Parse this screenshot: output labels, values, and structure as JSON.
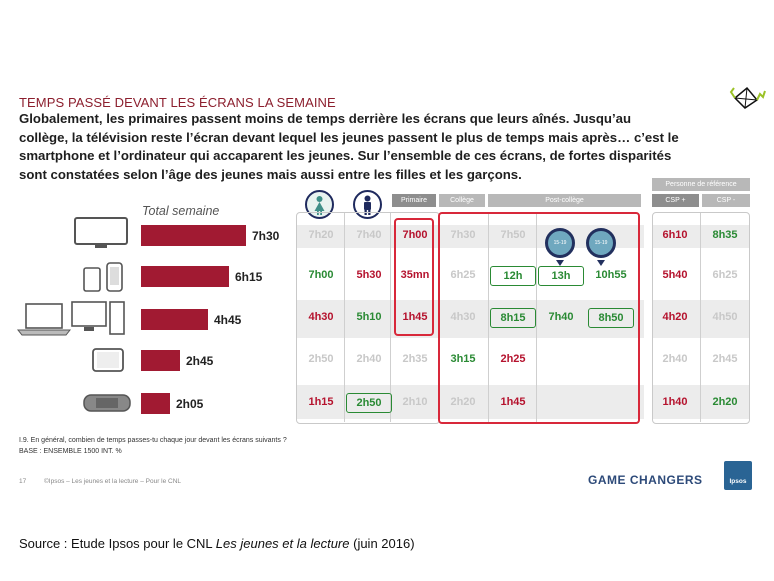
{
  "slide": {
    "title": "TEMPS PASSÉ DEVANT LES ÉCRANS LA SEMAINE",
    "text_lines": [
      "Globalement, les primaires passent moins de temps derrière les écrans que leurs aînés. Jusqu’au",
      "collège, la télévision reste l’écran devant lequel les jeunes passent le plus de temps mais après… c’est le",
      "smartphone et l’ordinateur qui accaparent les jeunes. Sur l’ensemble de ces écrans, de fortes disparités",
      "sont constatées selon l’âge des jeunes mais aussi entre les filles et les garçons."
    ]
  },
  "chart_data": {
    "type": "bar",
    "title": "Total semaine",
    "categories": [
      "tv-icon",
      "smartphone-icon",
      "computer-icon",
      "tablet-icon",
      "game-console-icon"
    ],
    "values": [
      7.5,
      6.25,
      4.75,
      2.75,
      2.0833
    ],
    "value_labels": [
      "7h30",
      "6h15",
      "4h45",
      "2h45",
      "2h05"
    ],
    "orientation": "horizontal",
    "bar_color": "#a11a32",
    "xlim": [
      0,
      7.5
    ]
  },
  "table": {
    "headers": {
      "primaire": "Primaire",
      "college": "Collège",
      "post_college": "Post-collège",
      "reference": "Personne de référence",
      "csp_plus": "CSP +",
      "csp_minus": "CSP -"
    },
    "age_badges": [
      "15-19",
      "15-19"
    ],
    "rows": [
      [
        {
          "v": "7h20",
          "c": "grey"
        },
        {
          "v": "7h40",
          "c": "grey"
        },
        {
          "v": "7h00",
          "c": "red"
        },
        {
          "v": "7h30",
          "c": "grey"
        },
        {
          "v": "7h50",
          "c": "grey"
        },
        {
          "v": "",
          "c": "grey"
        },
        {
          "v": "",
          "c": "grey"
        },
        {
          "v": "6h10",
          "c": "red"
        },
        {
          "v": "8h35",
          "c": "green"
        }
      ],
      [
        {
          "v": "7h00",
          "c": "green"
        },
        {
          "v": "5h30",
          "c": "red"
        },
        {
          "v": "35mn",
          "c": "red"
        },
        {
          "v": "6h25",
          "c": "grey"
        },
        {
          "v": "12h",
          "c": "green",
          "boxed": true
        },
        {
          "v": "13h",
          "c": "green",
          "boxed": true
        },
        {
          "v": "10h55",
          "c": "green"
        },
        {
          "v": "5h40",
          "c": "red"
        },
        {
          "v": "6h25",
          "c": "grey"
        }
      ],
      [
        {
          "v": "4h30",
          "c": "red"
        },
        {
          "v": "5h10",
          "c": "green"
        },
        {
          "v": "1h45",
          "c": "red"
        },
        {
          "v": "4h30",
          "c": "grey"
        },
        {
          "v": "8h15",
          "c": "green",
          "boxed": true
        },
        {
          "v": "7h40",
          "c": "green"
        },
        {
          "v": "8h50",
          "c": "green",
          "boxed": true
        },
        {
          "v": "4h20",
          "c": "red"
        },
        {
          "v": "4h50",
          "c": "grey"
        }
      ],
      [
        {
          "v": "2h50",
          "c": "grey"
        },
        {
          "v": "2h40",
          "c": "grey"
        },
        {
          "v": "2h35",
          "c": "grey"
        },
        {
          "v": "3h15",
          "c": "green"
        },
        {
          "v": "2h25",
          "c": "red"
        },
        {
          "v": "",
          "c": "grey"
        },
        {
          "v": "",
          "c": "grey"
        },
        {
          "v": "2h40",
          "c": "grey"
        },
        {
          "v": "2h45",
          "c": "grey"
        }
      ],
      [
        {
          "v": "1h15",
          "c": "red"
        },
        {
          "v": "2h50",
          "c": "green",
          "boxed": true
        },
        {
          "v": "2h10",
          "c": "grey"
        },
        {
          "v": "2h20",
          "c": "grey"
        },
        {
          "v": "1h45",
          "c": "red"
        },
        {
          "v": "",
          "c": "grey"
        },
        {
          "v": "",
          "c": "grey"
        },
        {
          "v": "1h40",
          "c": "red"
        },
        {
          "v": "2h20",
          "c": "green"
        }
      ]
    ]
  },
  "footnotes": {
    "question": "I.9. En général, combien de temps passes-tu chaque jour devant les écrans suivants ?",
    "base": "BASE : ENSEMBLE 1500 INT. %",
    "page": "17",
    "credit": "©Ipsos – Les jeunes et la lecture – Pour le CNL"
  },
  "branding": {
    "game_changers": "GAME CHANGERS",
    "ipsos": "Ipsos"
  },
  "source": {
    "prefix": "Source : Etude Ipsos pour le CNL ",
    "title": "Les jeunes et la lecture",
    "suffix": " (juin 2016)"
  },
  "colors": {
    "accent_red": "#b5132e",
    "bar_red": "#a11a32",
    "green": "#2a8a34",
    "navy": "#1f2a5e"
  }
}
